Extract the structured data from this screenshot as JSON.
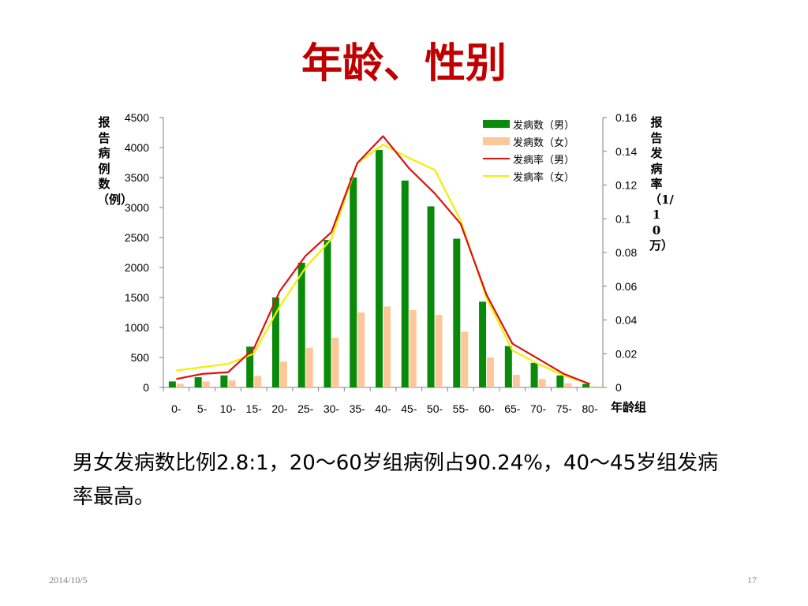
{
  "slide": {
    "title": "年龄、性别",
    "body": "男女发病数比例2.8:1，20～60岁组病例占90.24%，40～45岁组发病率最高。",
    "date": "2014/10/5",
    "page": "17"
  },
  "chart_data": {
    "type": "bar+line",
    "categories": [
      "0-",
      "5-",
      "10-",
      "15-",
      "20-",
      "25-",
      "30-",
      "35-",
      "40-",
      "45-",
      "50-",
      "55-",
      "60-",
      "65-",
      "70-",
      "75-",
      "80-"
    ],
    "xlabel": "年龄组",
    "ylabel_left": "报告病例数（例）",
    "ylabel_right": "报告发病率（1/10万）",
    "y_left_lim": [
      0,
      4500
    ],
    "y_left_ticks": [
      "0",
      "500",
      "1000",
      "1500",
      "2000",
      "2500",
      "3000",
      "3500",
      "4000",
      "4500"
    ],
    "y_right_lim": [
      0,
      0.16
    ],
    "y_right_ticks": [
      "0",
      "0.02",
      "0.04",
      "0.06",
      "0.08",
      "0.1",
      "0.12",
      "0.14",
      "0.16"
    ],
    "legend_position": "top-right",
    "series": [
      {
        "name": "发病数（男）",
        "kind": "bar",
        "axis": "left",
        "color": "#0a8a0a",
        "values": [
          100,
          170,
          200,
          680,
          1500,
          2080,
          2460,
          3500,
          3960,
          3450,
          3020,
          2480,
          1430,
          690,
          410,
          200,
          60
        ]
      },
      {
        "name": "发病数（女）",
        "kind": "bar",
        "axis": "left",
        "color": "#fcc89b",
        "values": [
          60,
          100,
          120,
          190,
          430,
          660,
          830,
          1250,
          1350,
          1290,
          1210,
          930,
          500,
          210,
          140,
          70,
          20
        ]
      },
      {
        "name": "发病率（男）",
        "kind": "line",
        "axis": "right",
        "color": "#dd1111",
        "values": [
          0.005,
          0.008,
          0.009,
          0.023,
          0.057,
          0.078,
          0.092,
          0.133,
          0.149,
          0.13,
          0.115,
          0.097,
          0.055,
          0.026,
          0.017,
          0.008,
          0.002
        ]
      },
      {
        "name": "发病率（女）",
        "kind": "line",
        "axis": "right",
        "color": "#f0f000",
        "values": [
          0.01,
          0.012,
          0.014,
          0.02,
          0.048,
          0.071,
          0.088,
          0.133,
          0.144,
          0.136,
          0.129,
          0.099,
          0.053,
          0.022,
          0.014,
          0.007,
          0.002
        ]
      }
    ]
  }
}
